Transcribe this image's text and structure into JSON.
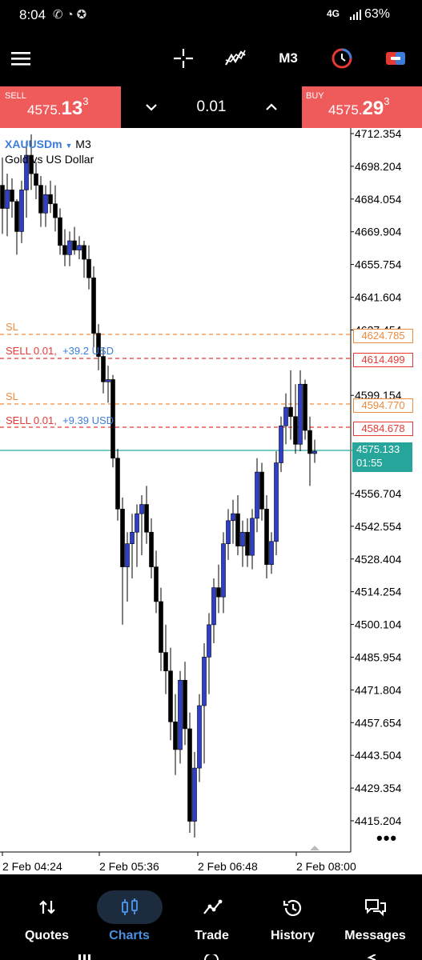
{
  "status": {
    "time": "8:04",
    "network": "4G",
    "battery": "63%"
  },
  "toolbar": {
    "timeframe": "M3"
  },
  "trade": {
    "sell": {
      "label": "SELL",
      "price_pre": "4575.",
      "price_big": "13",
      "price_sup": "3"
    },
    "buy": {
      "label": "BUY",
      "price_pre": "4575.",
      "price_big": "29",
      "price_sup": "3"
    },
    "lot": "0.01"
  },
  "chart": {
    "symbol": "XAUUSDm",
    "timeframe": "M3",
    "description": "Gold vs US Dollar",
    "price_axis": [
      "4712.354",
      "4698.204",
      "4684.054",
      "4669.904",
      "4655.754",
      "4641.604",
      "4627.454",
      "4599.154",
      "4556.704",
      "4542.554",
      "4528.404",
      "4514.254",
      "4500.104",
      "4485.954",
      "4471.804",
      "4457.654",
      "4443.504",
      "4429.354",
      "4415.204"
    ],
    "time_axis": [
      "2 Feb 04:24",
      "2 Feb 05:36",
      "2 Feb 06:48",
      "2 Feb 08:00"
    ],
    "levels": [
      {
        "kind": "sl",
        "text": "SL",
        "tag": "4624.785",
        "color": "#f08a3c"
      },
      {
        "kind": "order",
        "text": "SELL 0.01,",
        "profit": "+39.2 USD",
        "tag": "4614.499",
        "color": "#e53935"
      },
      {
        "kind": "sl",
        "text": "SL",
        "tag": "4594.770",
        "color": "#f08a3c"
      },
      {
        "kind": "order",
        "text": "SELL 0.01,",
        "profit": "+9.39 USD",
        "tag": "4584.678",
        "color": "#e53935"
      }
    ],
    "current": {
      "price": "4575.133",
      "countdown": "01:55",
      "color": "#26a69a"
    },
    "bull_color": "#2b3fd1",
    "bear_color": "#000000"
  },
  "nav": {
    "items": [
      {
        "label": "Quotes",
        "icon": "quotes-icon"
      },
      {
        "label": "Charts",
        "icon": "charts-icon"
      },
      {
        "label": "Trade",
        "icon": "trade-icon"
      },
      {
        "label": "History",
        "icon": "history-icon"
      },
      {
        "label": "Messages",
        "icon": "messages-icon"
      }
    ],
    "active": "Charts",
    "active_color": "#4a90e2"
  }
}
